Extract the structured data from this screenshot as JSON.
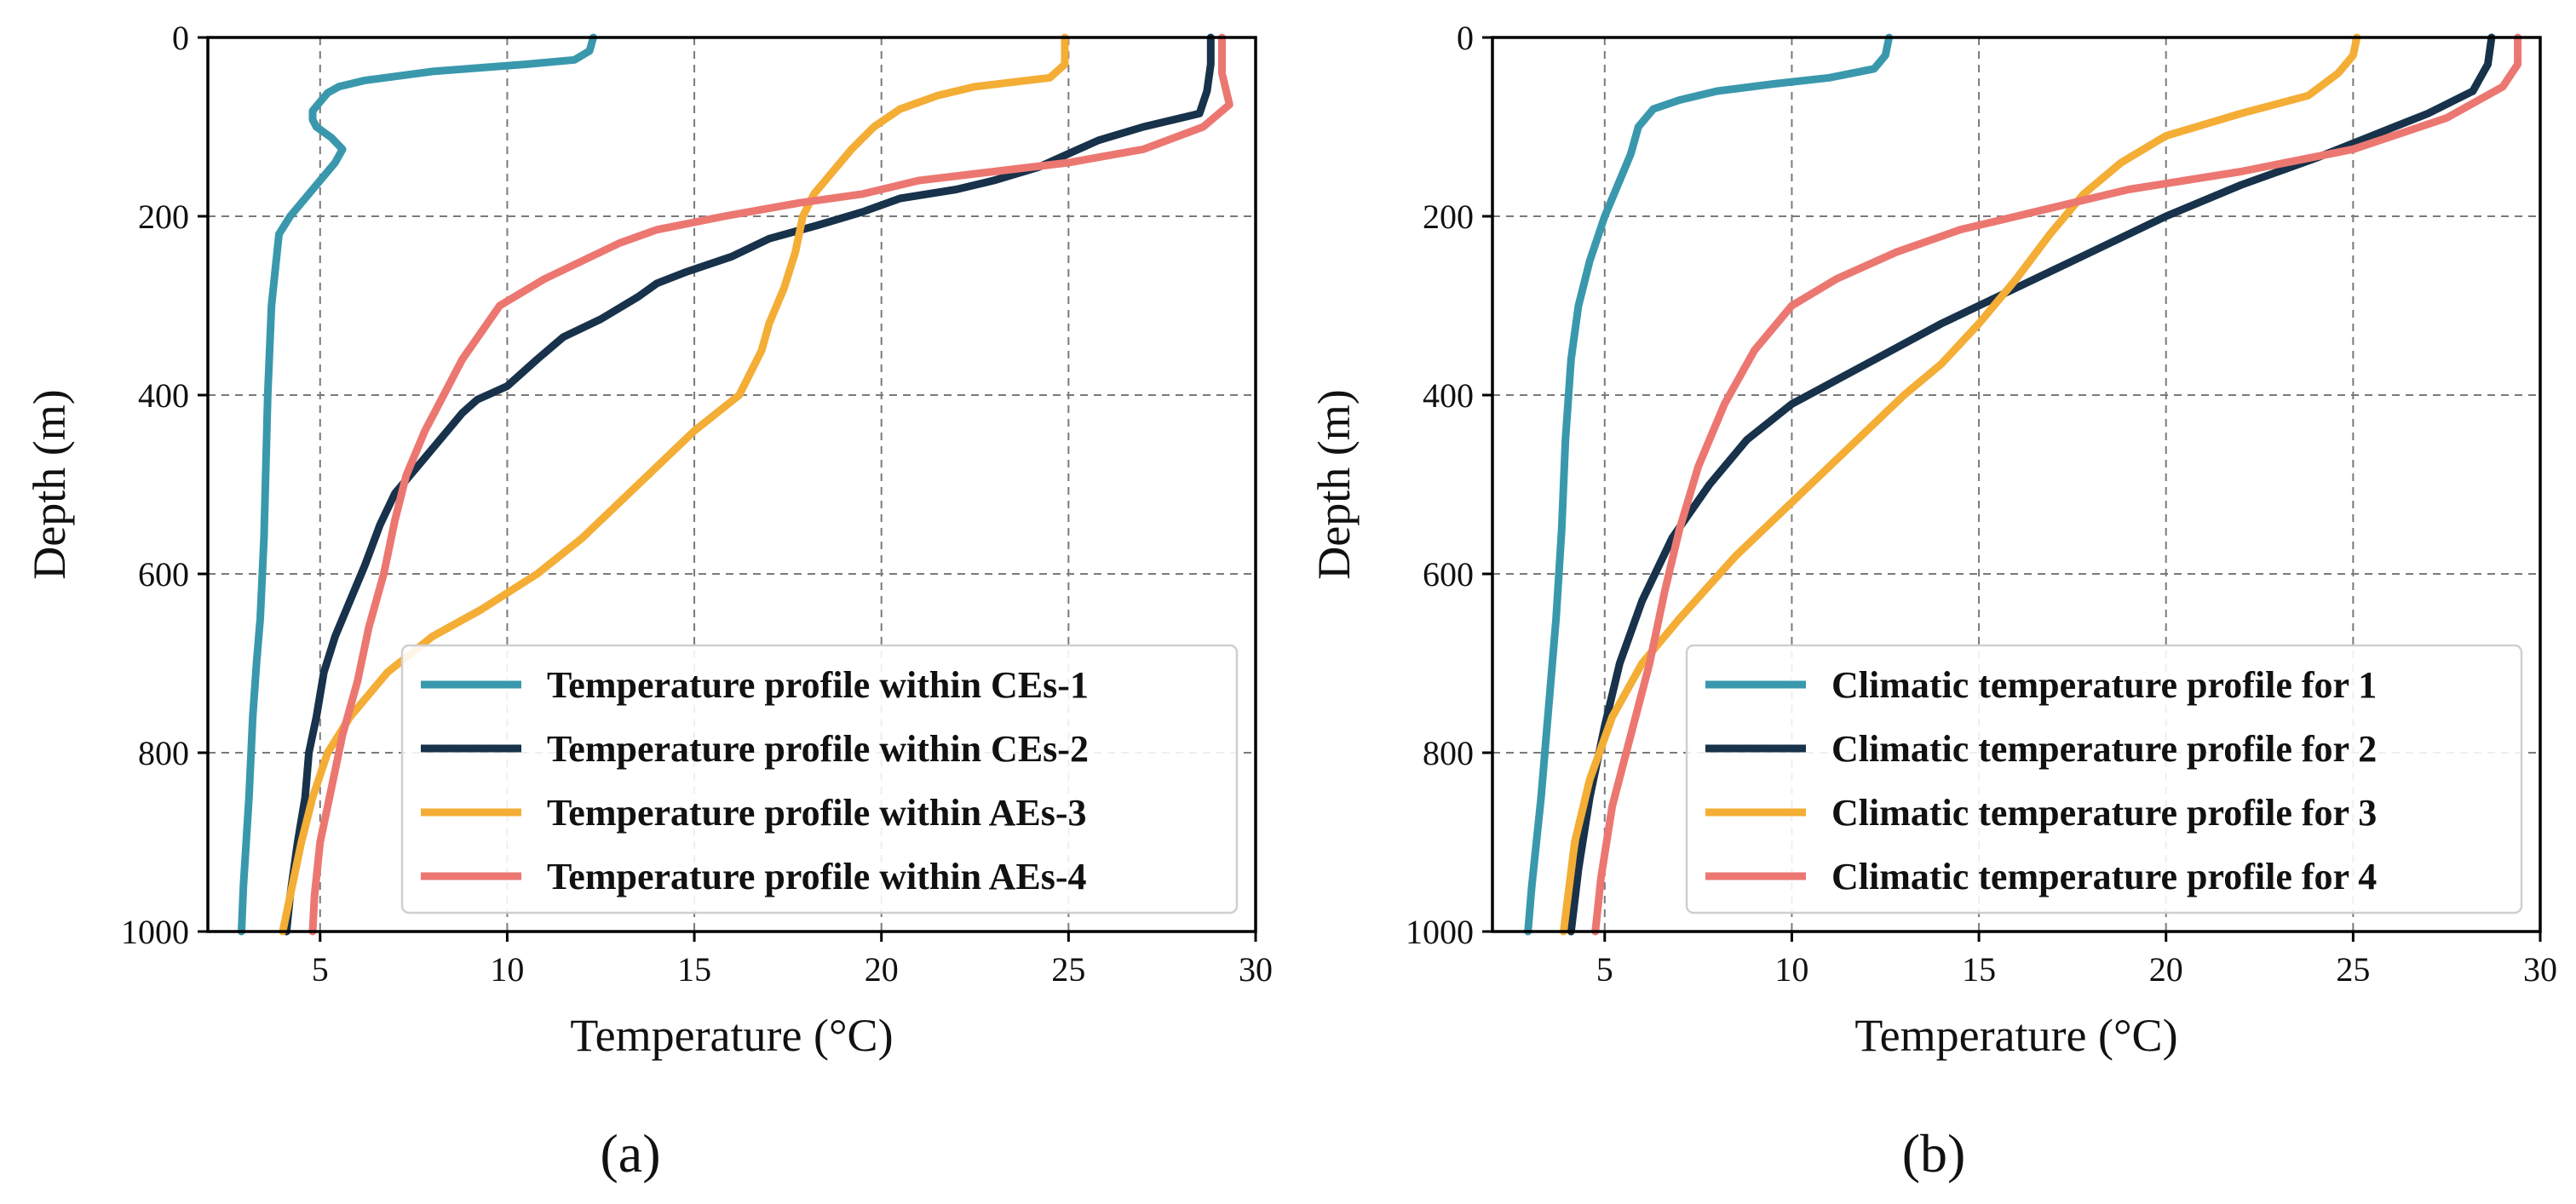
{
  "colors": {
    "series1": "#3a98ad",
    "series2": "#17324a",
    "series3": "#f4ad35",
    "series4": "#ec7771"
  },
  "chart_data": [
    {
      "id": "a",
      "type": "line",
      "caption": "(a)",
      "xlabel": "Temperature (°C)",
      "ylabel": "Depth (m)",
      "xlim": [
        2,
        30
      ],
      "ylim": [
        0,
        1000
      ],
      "y_inverted": true,
      "xticks": [
        5,
        10,
        15,
        20,
        25,
        30
      ],
      "yticks": [
        0,
        200,
        400,
        600,
        800,
        1000
      ],
      "grid": true,
      "legend_position": "lower-right",
      "series": [
        {
          "name": "Temperature profile within CEs-1",
          "color_key": "series1",
          "points": [
            [
              12.3,
              0
            ],
            [
              12.2,
              15
            ],
            [
              11.8,
              25
            ],
            [
              10.5,
              30
            ],
            [
              8.0,
              38
            ],
            [
              6.2,
              48
            ],
            [
              5.5,
              55
            ],
            [
              5.2,
              62
            ],
            [
              5.0,
              72
            ],
            [
              4.8,
              82
            ],
            [
              4.8,
              92
            ],
            [
              4.9,
              100
            ],
            [
              5.3,
              112
            ],
            [
              5.6,
              125
            ],
            [
              5.4,
              140
            ],
            [
              5.0,
              160
            ],
            [
              4.6,
              180
            ],
            [
              4.2,
              200
            ],
            [
              3.9,
              220
            ],
            [
              3.8,
              260
            ],
            [
              3.7,
              300
            ],
            [
              3.6,
              400
            ],
            [
              3.55,
              480
            ],
            [
              3.5,
              560
            ],
            [
              3.4,
              650
            ],
            [
              3.3,
              700
            ],
            [
              3.2,
              760
            ],
            [
              3.1,
              850
            ],
            [
              2.95,
              950
            ],
            [
              2.9,
              1000
            ]
          ]
        },
        {
          "name": "Temperature profile within CEs-2",
          "color_key": "series2",
          "points": [
            [
              28.8,
              0
            ],
            [
              28.8,
              30
            ],
            [
              28.7,
              60
            ],
            [
              28.5,
              85
            ],
            [
              27.0,
              100
            ],
            [
              25.8,
              115
            ],
            [
              25.0,
              130
            ],
            [
              24.2,
              145
            ],
            [
              23.0,
              160
            ],
            [
              22.0,
              170
            ],
            [
              20.5,
              180
            ],
            [
              19.5,
              195
            ],
            [
              18.3,
              210
            ],
            [
              17.0,
              225
            ],
            [
              16.0,
              245
            ],
            [
              14.8,
              262
            ],
            [
              14.0,
              275
            ],
            [
              13.5,
              290
            ],
            [
              12.5,
              315
            ],
            [
              11.5,
              335
            ],
            [
              10.8,
              360
            ],
            [
              10.0,
              390
            ],
            [
              9.2,
              405
            ],
            [
              8.8,
              420
            ],
            [
              8.2,
              450
            ],
            [
              7.6,
              480
            ],
            [
              7.0,
              510
            ],
            [
              6.6,
              545
            ],
            [
              6.2,
              590
            ],
            [
              5.8,
              630
            ],
            [
              5.4,
              670
            ],
            [
              5.1,
              710
            ],
            [
              4.9,
              760
            ],
            [
              4.7,
              800
            ],
            [
              4.6,
              850
            ],
            [
              4.4,
              900
            ],
            [
              4.2,
              960
            ],
            [
              4.1,
              1000
            ]
          ]
        },
        {
          "name": "Temperature profile within AEs-3",
          "color_key": "series3",
          "points": [
            [
              24.9,
              0
            ],
            [
              24.9,
              30
            ],
            [
              24.5,
              45
            ],
            [
              22.5,
              55
            ],
            [
              21.5,
              65
            ],
            [
              20.5,
              80
            ],
            [
              19.8,
              100
            ],
            [
              19.2,
              125
            ],
            [
              18.7,
              150
            ],
            [
              18.2,
              175
            ],
            [
              17.9,
              200
            ],
            [
              17.7,
              240
            ],
            [
              17.4,
              280
            ],
            [
              17.0,
              320
            ],
            [
              16.8,
              350
            ],
            [
              16.2,
              400
            ],
            [
              15.0,
              440
            ],
            [
              13.5,
              500
            ],
            [
              12.0,
              560
            ],
            [
              10.8,
              600
            ],
            [
              9.3,
              640
            ],
            [
              8.0,
              670
            ],
            [
              6.8,
              710
            ],
            [
              5.8,
              760
            ],
            [
              5.2,
              800
            ],
            [
              4.8,
              850
            ],
            [
              4.5,
              900
            ],
            [
              4.2,
              960
            ],
            [
              4.0,
              1000
            ]
          ]
        },
        {
          "name": "Temperature profile within AEs-4",
          "color_key": "series4",
          "points": [
            [
              29.1,
              0
            ],
            [
              29.1,
              40
            ],
            [
              29.3,
              75
            ],
            [
              28.6,
              100
            ],
            [
              27.0,
              125
            ],
            [
              25.0,
              140
            ],
            [
              23.0,
              150
            ],
            [
              21.0,
              160
            ],
            [
              19.5,
              175
            ],
            [
              17.8,
              185
            ],
            [
              15.8,
              200
            ],
            [
              14.0,
              215
            ],
            [
              13.0,
              230
            ],
            [
              12.0,
              250
            ],
            [
              11.0,
              270
            ],
            [
              10.2,
              290
            ],
            [
              9.8,
              300
            ],
            [
              9.3,
              330
            ],
            [
              8.8,
              360
            ],
            [
              8.3,
              400
            ],
            [
              7.8,
              440
            ],
            [
              7.3,
              490
            ],
            [
              7.0,
              540
            ],
            [
              6.7,
              600
            ],
            [
              6.3,
              660
            ],
            [
              6.0,
              720
            ],
            [
              5.6,
              780
            ],
            [
              5.3,
              840
            ],
            [
              5.0,
              900
            ],
            [
              4.85,
              960
            ],
            [
              4.8,
              1000
            ]
          ]
        }
      ]
    },
    {
      "id": "b",
      "type": "line",
      "caption": "(b)",
      "xlabel": "Temperature (°C)",
      "ylabel": "Depth (m)",
      "xlim": [
        2,
        30
      ],
      "ylim": [
        0,
        1000
      ],
      "y_inverted": true,
      "xticks": [
        5,
        10,
        15,
        20,
        25,
        30
      ],
      "yticks": [
        0,
        200,
        400,
        600,
        800,
        1000
      ],
      "grid": true,
      "legend_position": "lower-right",
      "series": [
        {
          "name": "Climatic temperature profile for 1",
          "color_key": "series1",
          "points": [
            [
              12.6,
              0
            ],
            [
              12.5,
              20
            ],
            [
              12.2,
              35
            ],
            [
              11.0,
              45
            ],
            [
              9.5,
              52
            ],
            [
              8.0,
              60
            ],
            [
              7.0,
              70
            ],
            [
              6.3,
              80
            ],
            [
              5.9,
              100
            ],
            [
              5.7,
              130
            ],
            [
              5.4,
              160
            ],
            [
              5.0,
              200
            ],
            [
              4.6,
              250
            ],
            [
              4.3,
              300
            ],
            [
              4.1,
              360
            ],
            [
              3.95,
              450
            ],
            [
              3.85,
              550
            ],
            [
              3.7,
              650
            ],
            [
              3.5,
              750
            ],
            [
              3.3,
              850
            ],
            [
              3.05,
              950
            ],
            [
              2.95,
              1000
            ]
          ]
        },
        {
          "name": "Climatic temperature profile for 2",
          "color_key": "series2",
          "points": [
            [
              28.7,
              0
            ],
            [
              28.6,
              30
            ],
            [
              28.2,
              60
            ],
            [
              27.0,
              85
            ],
            [
              25.5,
              110
            ],
            [
              24.0,
              135
            ],
            [
              22.0,
              165
            ],
            [
              20.0,
              200
            ],
            [
              18.0,
              240
            ],
            [
              16.0,
              280
            ],
            [
              14.0,
              320
            ],
            [
              12.0,
              365
            ],
            [
              10.0,
              410
            ],
            [
              8.8,
              450
            ],
            [
              7.8,
              500
            ],
            [
              6.8,
              560
            ],
            [
              6.0,
              630
            ],
            [
              5.4,
              700
            ],
            [
              5.0,
              770
            ],
            [
              4.6,
              850
            ],
            [
              4.3,
              930
            ],
            [
              4.1,
              1000
            ]
          ]
        },
        {
          "name": "Climatic temperature profile for 3",
          "color_key": "series3",
          "points": [
            [
              25.1,
              0
            ],
            [
              25.0,
              20
            ],
            [
              24.6,
              40
            ],
            [
              23.8,
              65
            ],
            [
              22.0,
              85
            ],
            [
              20.0,
              110
            ],
            [
              18.8,
              140
            ],
            [
              17.8,
              175
            ],
            [
              16.9,
              220
            ],
            [
              16.0,
              270
            ],
            [
              15.0,
              320
            ],
            [
              14.0,
              365
            ],
            [
              13.0,
              400
            ],
            [
              11.5,
              460
            ],
            [
              10.0,
              520
            ],
            [
              8.5,
              580
            ],
            [
              7.0,
              650
            ],
            [
              6.0,
              700
            ],
            [
              5.2,
              760
            ],
            [
              4.6,
              830
            ],
            [
              4.2,
              900
            ],
            [
              3.9,
              1000
            ]
          ]
        },
        {
          "name": "Climatic temperature profile for 4",
          "color_key": "series4",
          "points": [
            [
              29.4,
              0
            ],
            [
              29.4,
              30
            ],
            [
              29.0,
              55
            ],
            [
              27.5,
              90
            ],
            [
              25.0,
              125
            ],
            [
              22.0,
              150
            ],
            [
              19.0,
              170
            ],
            [
              16.5,
              195
            ],
            [
              14.5,
              215
            ],
            [
              12.8,
              240
            ],
            [
              11.2,
              270
            ],
            [
              10.0,
              300
            ],
            [
              9.0,
              350
            ],
            [
              8.2,
              410
            ],
            [
              7.5,
              480
            ],
            [
              7.0,
              550
            ],
            [
              6.6,
              620
            ],
            [
              6.2,
              700
            ],
            [
              5.7,
              780
            ],
            [
              5.2,
              860
            ],
            [
              4.9,
              940
            ],
            [
              4.75,
              1000
            ]
          ]
        }
      ]
    }
  ]
}
